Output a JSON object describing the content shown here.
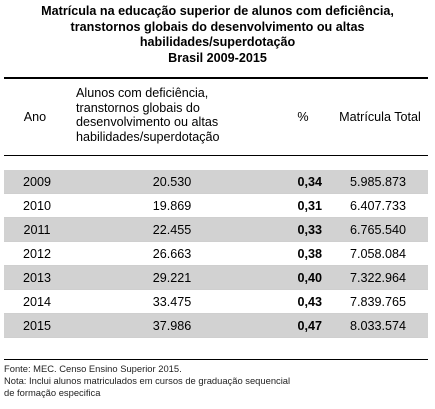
{
  "title": {
    "lines": [
      "Matrícula na educação superior de alunos com deficiência,",
      "transtornos globais do desenvolvimento ou altas",
      "habilidades/superdotação",
      "Brasil 2009-2015"
    ]
  },
  "table": {
    "headers": {
      "ano": "Ano",
      "alunos_lines": [
        "Alunos com deficiência,",
        "transtornos globais do",
        "desenvolvimento ou altas",
        "habilidades/superdotação"
      ],
      "pct": "%",
      "total": "Matrícula Total"
    },
    "rows": [
      {
        "ano": "2009",
        "alunos": "20.530",
        "pct": "0,34",
        "total": "5.985.873"
      },
      {
        "ano": "2010",
        "alunos": "19.869",
        "pct": "0,31",
        "total": "6.407.733"
      },
      {
        "ano": "2011",
        "alunos": "22.455",
        "pct": "0,33",
        "total": "6.765.540"
      },
      {
        "ano": "2012",
        "alunos": "26.663",
        "pct": "0,38",
        "total": "7.058.084"
      },
      {
        "ano": "2013",
        "alunos": "29.221",
        "pct": "0,40",
        "total": "7.322.964"
      },
      {
        "ano": "2014",
        "alunos": "33.475",
        "pct": "0,43",
        "total": "7.839.765"
      },
      {
        "ano": "2015",
        "alunos": "37.986",
        "pct": "0,47",
        "total": "8.033.574"
      }
    ]
  },
  "notes": {
    "fonte": "Fonte: MEC. Censo Ensino Superior 2015.",
    "nota_lines": [
      "Nota: Inclui alunos matriculados  em cursos  de graduação sequencial",
      "de formação especifica"
    ]
  }
}
